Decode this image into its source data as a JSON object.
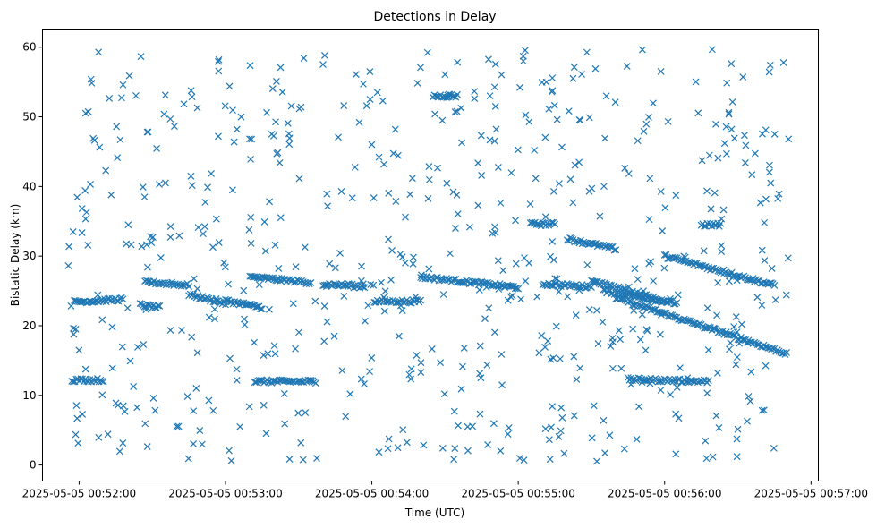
{
  "chart_data": {
    "type": "scatter",
    "title": "Detections in Delay",
    "xlabel": "Time (UTC)",
    "ylabel": "Bistatic Delay (km)",
    "x_ticks": [
      "2025-05-05 00:52:00",
      "2025-05-05 00:53:00",
      "2025-05-05 00:54:00",
      "2025-05-05 00:55:00",
      "2025-05-05 00:56:00",
      "2025-05-05 00:57:00"
    ],
    "y_ticks": [
      0,
      10,
      20,
      30,
      40,
      50,
      60
    ],
    "xlim": [
      "2025-05-05 00:51:45",
      "2025-05-05 00:57:03"
    ],
    "ylim": [
      -2.3,
      62.6
    ],
    "marker": "x",
    "color": "#1f77b4",
    "grid": false,
    "tracks": [
      {
        "x_start": "2025-05-05 00:51:57",
        "x_end": "2025-05-05 00:52:10",
        "y_start": 12.2,
        "y_end": 12.2
      },
      {
        "x_start": "2025-05-05 00:51:58",
        "x_end": "2025-05-05 00:52:18",
        "y_start": 23.4,
        "y_end": 23.8
      },
      {
        "x_start": "2025-05-05 00:52:25",
        "x_end": "2025-05-05 00:52:33",
        "y_start": 23.0,
        "y_end": 22.6
      },
      {
        "x_start": "2025-05-05 00:52:27",
        "x_end": "2025-05-05 00:52:45",
        "y_start": 26.3,
        "y_end": 25.8
      },
      {
        "x_start": "2025-05-05 00:52:45",
        "x_end": "2025-05-05 00:53:00",
        "y_start": 24.5,
        "y_end": 23.2
      },
      {
        "x_start": "2025-05-05 00:53:00",
        "x_end": "2025-05-05 00:53:15",
        "y_start": 23.6,
        "y_end": 22.6
      },
      {
        "x_start": "2025-05-05 00:53:10",
        "x_end": "2025-05-05 00:53:35",
        "y_start": 27.0,
        "y_end": 26.2
      },
      {
        "x_start": "2025-05-05 00:53:12",
        "x_end": "2025-05-05 00:53:37",
        "y_start": 12.0,
        "y_end": 12.0
      },
      {
        "x_start": "2025-05-05 00:53:40",
        "x_end": "2025-05-05 00:53:57",
        "y_start": 26.0,
        "y_end": 25.6
      },
      {
        "x_start": "2025-05-05 00:54:01",
        "x_end": "2025-05-05 00:54:20",
        "y_start": 23.5,
        "y_end": 23.5
      },
      {
        "x_start": "2025-05-05 00:54:25",
        "x_end": "2025-05-05 00:54:35",
        "y_start": 53.0,
        "y_end": 53.0
      },
      {
        "x_start": "2025-05-05 00:54:20",
        "x_end": "2025-05-05 00:55:00",
        "y_start": 27.0,
        "y_end": 25.5
      },
      {
        "x_start": "2025-05-05 00:55:05",
        "x_end": "2025-05-05 00:55:15",
        "y_start": 34.6,
        "y_end": 34.6
      },
      {
        "x_start": "2025-05-05 00:55:10",
        "x_end": "2025-05-05 00:55:30",
        "y_start": 26.0,
        "y_end": 25.6
      },
      {
        "x_start": "2025-05-05 00:55:20",
        "x_end": "2025-05-05 00:55:40",
        "y_start": 32.5,
        "y_end": 31.0
      },
      {
        "x_start": "2025-05-05 00:55:30",
        "x_end": "2025-05-05 00:56:00",
        "y_start": 26.5,
        "y_end": 23.5
      },
      {
        "x_start": "2025-05-05 00:55:35",
        "x_end": "2025-05-05 00:56:05",
        "y_start": 25.0,
        "y_end": 23.2
      },
      {
        "x_start": "2025-05-05 00:55:40",
        "x_end": "2025-05-05 00:56:50",
        "y_start": 24.0,
        "y_end": 16.0
      },
      {
        "x_start": "2025-05-05 00:55:45",
        "x_end": "2025-05-05 00:56:18",
        "y_start": 12.3,
        "y_end": 12.0
      },
      {
        "x_start": "2025-05-05 00:56:00",
        "x_end": "2025-05-05 00:56:45",
        "y_start": 30.0,
        "y_end": 25.8
      },
      {
        "x_start": "2025-05-05 00:56:15",
        "x_end": "2025-05-05 00:56:23",
        "y_start": 34.5,
        "y_end": 34.5
      }
    ],
    "clutter": {
      "x_range": [
        "2025-05-05 00:51:55",
        "2025-05-05 00:56:52"
      ],
      "y_range": [
        0.5,
        59.8
      ],
      "count": 620
    }
  }
}
